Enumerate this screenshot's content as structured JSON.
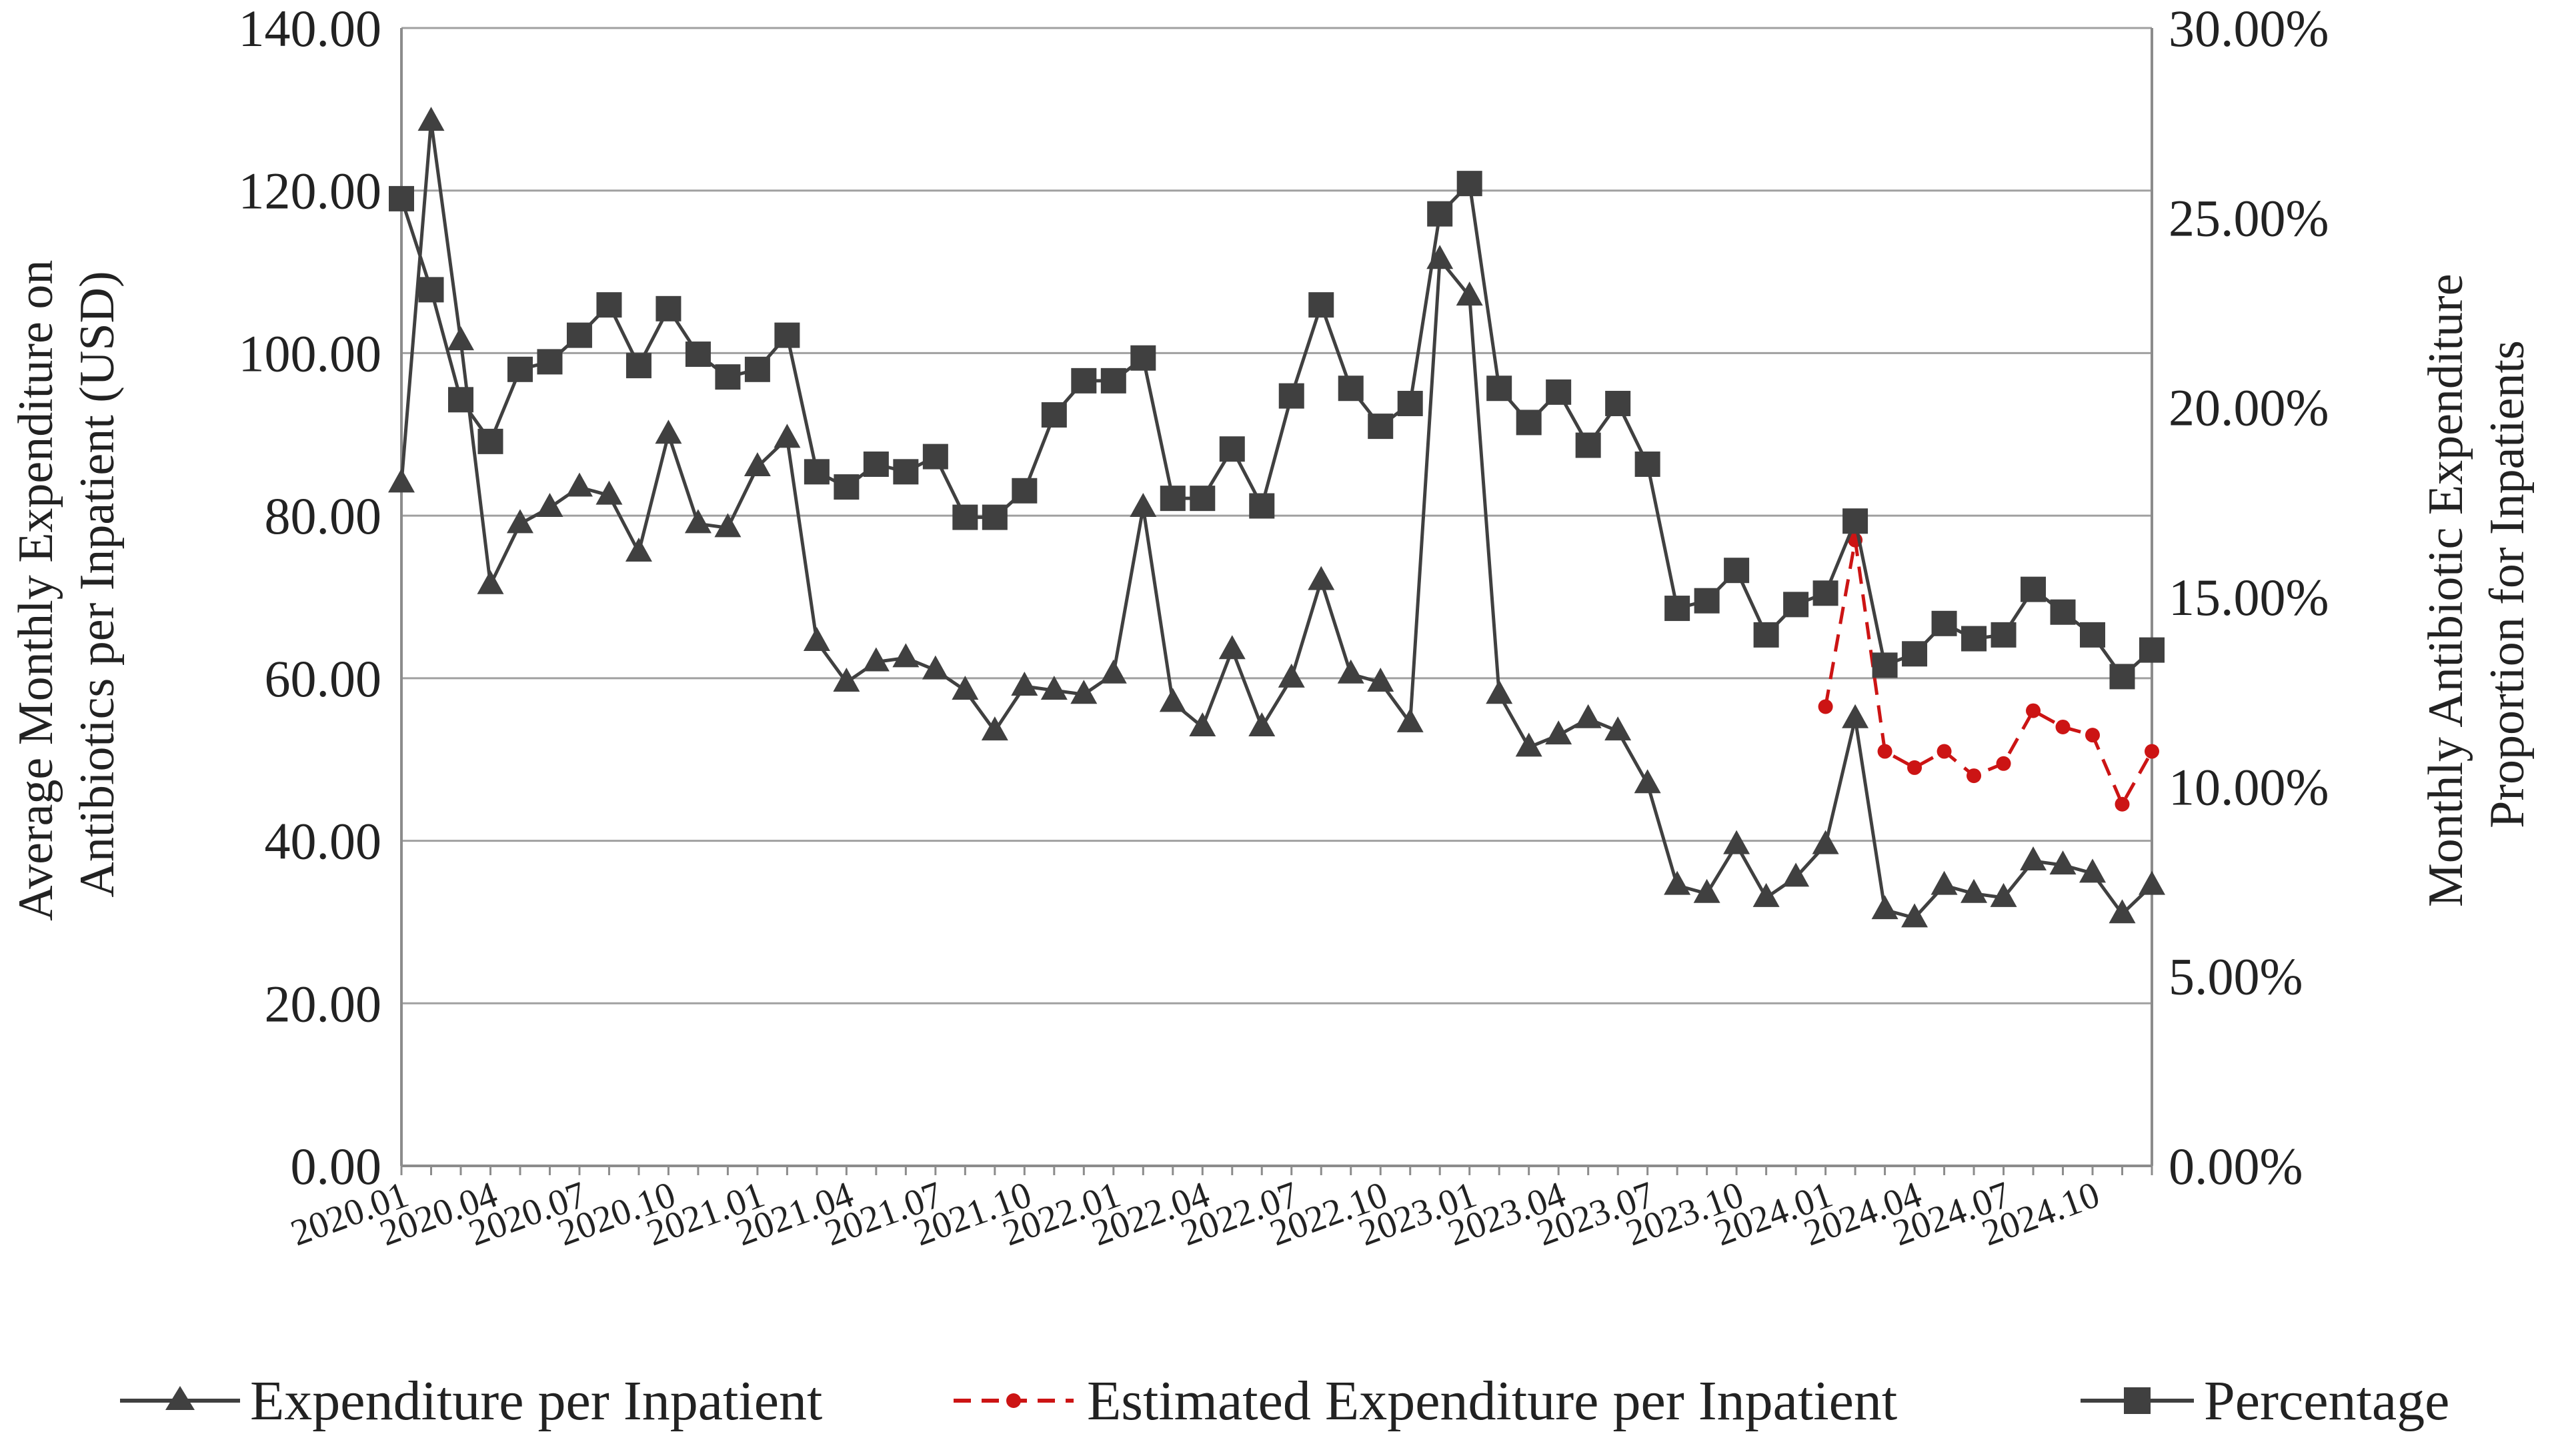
{
  "chart_data": {
    "type": "line",
    "title": "",
    "x_tick_labels": [
      "2020.01",
      "2020.04",
      "2020.07",
      "2020.10",
      "2021.01",
      "2021.04",
      "2021.07",
      "2021.10",
      "2022.01",
      "2022.04",
      "2022.07",
      "2022.10",
      "2023.01",
      "2023.04",
      "2023.07",
      "2023.10",
      "2024.01",
      "2024.04",
      "2024.07",
      "2024.10"
    ],
    "x_count": 60,
    "y_left": {
      "label_line1": "Average Monthly Expenditure on",
      "label_line2": "Antibiotics per Inpatient (USD)",
      "ylim": [
        0,
        140
      ],
      "ticks": [
        "0.00",
        "20.00",
        "40.00",
        "60.00",
        "80.00",
        "100.00",
        "120.00",
        "140.00"
      ]
    },
    "y_right": {
      "label_line1": "Monthly Antibiotic Expenditure",
      "label_line2": "Proportion for Inpatients",
      "ylim": [
        0,
        30
      ],
      "ticks": [
        "0.00%",
        "5.00%",
        "10.00%",
        "15.00%",
        "20.00%",
        "25.00%",
        "30.00%"
      ]
    },
    "grid": true,
    "legend_position": "bottom",
    "series": [
      {
        "name": "Expenditure per Inpatient",
        "axis": "left",
        "color": "#404040",
        "marker": "triangle",
        "dash": "solid",
        "start_index": 0,
        "values": [
          84.0,
          128.5,
          101.5,
          71.5,
          79.0,
          81.0,
          83.5,
          82.5,
          75.5,
          90.0,
          79.0,
          78.5,
          86.0,
          89.5,
          64.5,
          59.5,
          62.0,
          62.5,
          61.0,
          58.5,
          53.5,
          59.0,
          58.5,
          58.0,
          60.5,
          81.0,
          57.0,
          54.0,
          63.5,
          54.0,
          60.0,
          72.0,
          60.5,
          59.5,
          54.5,
          111.5,
          107.0,
          58.0,
          51.5,
          53.0,
          55.0,
          53.5,
          47.0,
          34.5,
          33.5,
          39.5,
          33.0,
          35.5,
          39.5,
          55.0,
          31.5,
          30.5,
          34.5,
          33.5,
          33.0,
          37.5,
          37.0,
          36.0,
          31.0,
          34.5
        ]
      },
      {
        "name": "Estimated Expenditure per Inpatient",
        "axis": "left",
        "color": "#cc1414",
        "marker": "dot",
        "dash": "dashed",
        "start_index": 48,
        "values": [
          56.5,
          77.0,
          51.0,
          49.0,
          51.0,
          48.0,
          49.5,
          56.0,
          54.0,
          53.0,
          44.5,
          51.0
        ]
      },
      {
        "name": "Percentage",
        "axis": "right",
        "color": "#404040",
        "marker": "square",
        "dash": "solid",
        "start_index": 0,
        "values": [
          25.5,
          23.1,
          20.2,
          19.1,
          21.0,
          21.2,
          21.9,
          22.7,
          21.1,
          22.6,
          21.4,
          20.8,
          21.0,
          21.9,
          18.3,
          17.9,
          18.5,
          18.3,
          18.7,
          17.1,
          17.1,
          17.8,
          19.8,
          20.7,
          20.7,
          21.3,
          17.6,
          17.6,
          18.9,
          17.4,
          20.3,
          22.7,
          20.5,
          19.5,
          20.1,
          25.1,
          25.9,
          20.5,
          19.6,
          20.4,
          19.0,
          20.1,
          18.5,
          14.7,
          14.9,
          15.7,
          14.0,
          14.8,
          15.1,
          17.0,
          13.2,
          13.5,
          14.3,
          13.9,
          14.0,
          15.2,
          14.6,
          14.0,
          12.9,
          13.6
        ]
      }
    ]
  }
}
